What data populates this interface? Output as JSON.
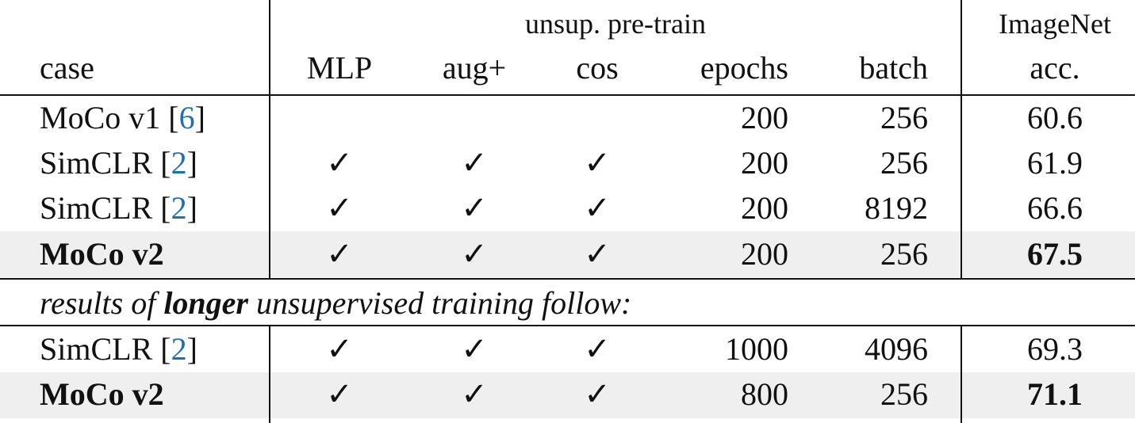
{
  "header": {
    "group": "unsup. pre-train",
    "group2": "ImageNet",
    "columns": [
      "case",
      "MLP",
      "aug+",
      "cos",
      "epochs",
      "batch",
      "acc."
    ]
  },
  "rows": [
    {
      "case": "MoCo v1",
      "ref": {
        "left": "[",
        "number": 6,
        "right": "]"
      },
      "epochs": 200,
      "batch": 256,
      "acc": 60.6
    },
    {
      "case": "SimCLR",
      "ref": {
        "left": "[",
        "number": 2,
        "right": "]"
      },
      "mlp": "✓",
      "aug": "✓",
      "cos": "✓",
      "epochs": 200,
      "batch": 256,
      "acc": 61.9
    },
    {
      "case": "SimCLR",
      "ref": {
        "left": "[",
        "number": 2,
        "right": "]"
      },
      "mlp": "✓",
      "aug": "✓",
      "cos": "✓",
      "epochs": 200,
      "batch": 8192,
      "acc": 66.6
    },
    {
      "case": "MoCo v2",
      "mlp": "✓",
      "aug": "✓",
      "cos": "✓",
      "epochs": 200,
      "batch": 256,
      "acc": 67.5,
      "bold": true
    }
  ],
  "note": [
    "results of ",
    "longer",
    " unsupervised training follow:"
  ],
  "rows_longer": [
    {
      "case": "SimCLR",
      "ref": {
        "left": "[",
        "number": 2,
        "right": "]"
      },
      "mlp": "✓",
      "aug": "✓",
      "cos": "✓",
      "epochs": 1000,
      "batch": 4096,
      "acc": 69.3
    },
    {
      "case": "MoCo v2",
      "mlp": "✓",
      "aug": "✓",
      "cos": "✓",
      "epochs": 800,
      "batch": 256,
      "acc": 71.1,
      "bold": true
    }
  ]
}
